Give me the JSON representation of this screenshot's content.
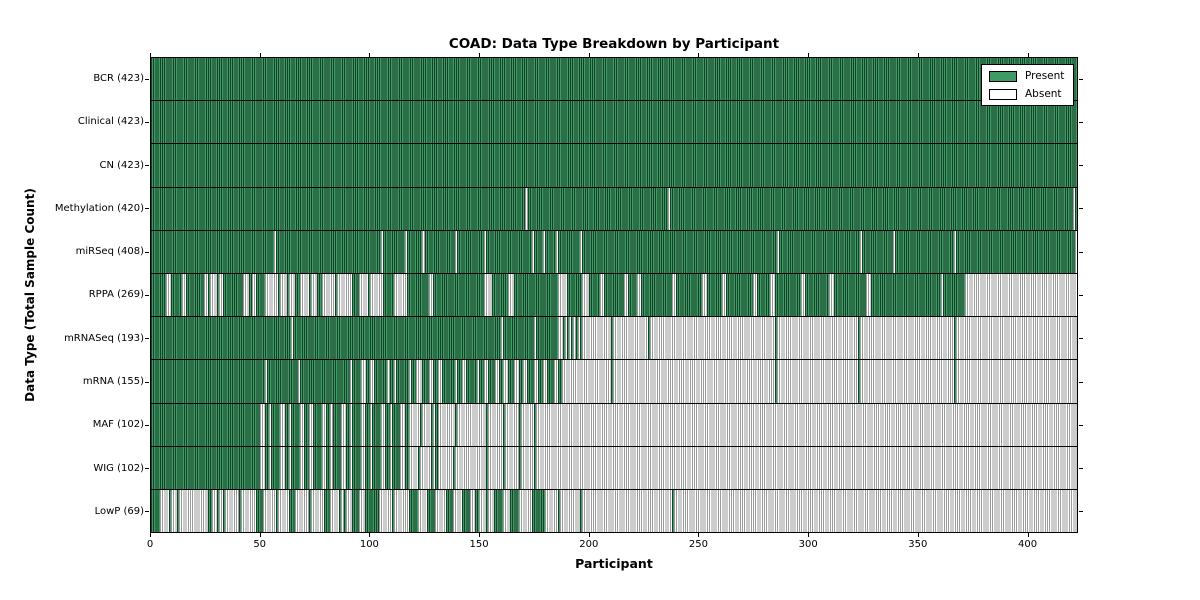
{
  "chart_data": {
    "type": "heatmap",
    "title": "COAD: Data Type Breakdown by Participant",
    "xlabel": "Participant",
    "ylabel": "Data Type (Total Sample Count)",
    "total_participants": 423,
    "x_ticks": [
      0,
      50,
      100,
      150,
      200,
      250,
      300,
      350,
      400
    ],
    "legend_present": "Present",
    "legend_absent": "Absent",
    "colors": {
      "present": "#3f9b64",
      "present_edge": "#17402a",
      "absent": "#ffffff",
      "absent_edge": "#9a9a9a"
    },
    "legend_position": "upper right",
    "rows": [
      {
        "label": "BCR (423)",
        "name": "BCR",
        "count": 423,
        "present_ranges": [
          [
            0,
            423
          ]
        ]
      },
      {
        "label": "Clinical (423)",
        "name": "Clinical",
        "count": 423,
        "present_ranges": [
          [
            0,
            423
          ]
        ]
      },
      {
        "label": "CN (423)",
        "name": "CN",
        "count": 423,
        "present_ranges": [
          [
            0,
            423
          ]
        ]
      },
      {
        "label": "Methylation (420)",
        "name": "Methylation",
        "count": 420,
        "present_ranges": [
          [
            0,
            171
          ],
          [
            172,
            236
          ],
          [
            237,
            421
          ],
          [
            422,
            423
          ]
        ]
      },
      {
        "label": "miRSeq (408)",
        "name": "miRSeq",
        "count": 408,
        "present_ranges": [
          [
            0,
            56
          ],
          [
            57,
            105
          ],
          [
            106,
            116
          ],
          [
            117,
            124
          ],
          [
            125,
            139
          ],
          [
            140,
            152
          ],
          [
            153,
            174
          ],
          [
            175,
            179
          ],
          [
            180,
            185
          ],
          [
            186,
            196
          ],
          [
            197,
            286
          ],
          [
            287,
            324
          ],
          [
            325,
            339
          ],
          [
            340,
            367
          ],
          [
            368,
            422
          ]
        ]
      },
      {
        "label": "RPPA (269)",
        "name": "RPPA",
        "count": 269,
        "present_ranges": [
          [
            0,
            7
          ],
          [
            9,
            14
          ],
          [
            16,
            24
          ],
          [
            26,
            27
          ],
          [
            30,
            31
          ],
          [
            33,
            42
          ],
          [
            45,
            46
          ],
          [
            48,
            52
          ],
          [
            58,
            59
          ],
          [
            62,
            63
          ],
          [
            66,
            68
          ],
          [
            72,
            73
          ],
          [
            76,
            78
          ],
          [
            84,
            85
          ],
          [
            92,
            95
          ],
          [
            99,
            100
          ],
          [
            106,
            111
          ],
          [
            117,
            127
          ],
          [
            129,
            152
          ],
          [
            156,
            163
          ],
          [
            166,
            186
          ],
          [
            190,
            197
          ],
          [
            200,
            205
          ],
          [
            207,
            216
          ],
          [
            218,
            222
          ],
          [
            224,
            238
          ],
          [
            240,
            252
          ],
          [
            254,
            261
          ],
          [
            263,
            275
          ],
          [
            277,
            283
          ],
          [
            285,
            297
          ],
          [
            299,
            310
          ],
          [
            312,
            327
          ],
          [
            329,
            361
          ],
          [
            362,
            372
          ]
        ]
      },
      {
        "label": "mRNASeq (193)",
        "name": "mRNASeq",
        "count": 193,
        "present_ranges": [
          [
            0,
            64
          ],
          [
            65,
            160
          ],
          [
            161,
            175
          ],
          [
            176,
            186
          ],
          [
            188,
            189
          ],
          [
            190,
            191
          ],
          [
            192,
            193
          ],
          [
            194,
            195
          ],
          [
            196,
            197
          ],
          [
            210,
            211
          ],
          [
            227,
            228
          ],
          [
            285,
            286
          ],
          [
            323,
            324
          ],
          [
            367,
            368
          ]
        ]
      },
      {
        "label": "mRNA (155)",
        "name": "mRNA",
        "count": 155,
        "present_ranges": [
          [
            0,
            52
          ],
          [
            53,
            67
          ],
          [
            68,
            91
          ],
          [
            92,
            96
          ],
          [
            98,
            100
          ],
          [
            102,
            108
          ],
          [
            109,
            111
          ],
          [
            112,
            118
          ],
          [
            119,
            121
          ],
          [
            124,
            127
          ],
          [
            129,
            131
          ],
          [
            133,
            139
          ],
          [
            140,
            142
          ],
          [
            144,
            149
          ],
          [
            150,
            152
          ],
          [
            154,
            157
          ],
          [
            159,
            161
          ],
          [
            163,
            166
          ],
          [
            168,
            170
          ],
          [
            172,
            175
          ],
          [
            177,
            179
          ],
          [
            181,
            184
          ],
          [
            186,
            188
          ],
          [
            210,
            211
          ],
          [
            285,
            286
          ],
          [
            323,
            324
          ],
          [
            367,
            368
          ]
        ]
      },
      {
        "label": "MAF (102)",
        "name": "MAF",
        "count": 102,
        "present_ranges": [
          [
            0,
            50
          ],
          [
            52,
            54
          ],
          [
            55,
            59
          ],
          [
            61,
            63
          ],
          [
            64,
            68
          ],
          [
            70,
            72
          ],
          [
            74,
            78
          ],
          [
            80,
            82
          ],
          [
            83,
            87
          ],
          [
            89,
            91
          ],
          [
            92,
            96
          ],
          [
            98,
            100
          ],
          [
            101,
            105
          ],
          [
            107,
            109
          ],
          [
            110,
            114
          ],
          [
            116,
            118
          ],
          [
            123,
            124
          ],
          [
            128,
            129
          ],
          [
            130,
            131
          ],
          [
            139,
            140
          ],
          [
            153,
            154
          ],
          [
            161,
            162
          ],
          [
            168,
            169
          ],
          [
            175,
            176
          ]
        ]
      },
      {
        "label": "WIG (102)",
        "name": "WIG",
        "count": 102,
        "present_ranges": [
          [
            0,
            50
          ],
          [
            52,
            54
          ],
          [
            55,
            59
          ],
          [
            61,
            63
          ],
          [
            64,
            68
          ],
          [
            70,
            72
          ],
          [
            74,
            78
          ],
          [
            80,
            82
          ],
          [
            83,
            87
          ],
          [
            89,
            91
          ],
          [
            92,
            96
          ],
          [
            98,
            100
          ],
          [
            101,
            105
          ],
          [
            107,
            109
          ],
          [
            110,
            114
          ],
          [
            116,
            118
          ],
          [
            122,
            123
          ],
          [
            128,
            129
          ],
          [
            130,
            131
          ],
          [
            138,
            139
          ],
          [
            153,
            154
          ],
          [
            161,
            162
          ],
          [
            168,
            169
          ],
          [
            175,
            176
          ]
        ]
      },
      {
        "label": "LowP (69)",
        "name": "LowP",
        "count": 69,
        "present_ranges": [
          [
            0,
            4
          ],
          [
            8,
            9
          ],
          [
            12,
            13
          ],
          [
            26,
            28
          ],
          [
            30,
            31
          ],
          [
            33,
            34
          ],
          [
            40,
            41
          ],
          [
            48,
            51
          ],
          [
            57,
            58
          ],
          [
            63,
            66
          ],
          [
            72,
            73
          ],
          [
            79,
            82
          ],
          [
            86,
            87
          ],
          [
            88,
            89
          ],
          [
            92,
            95
          ],
          [
            98,
            104
          ],
          [
            110,
            111
          ],
          [
            118,
            122
          ],
          [
            126,
            130
          ],
          [
            135,
            138
          ],
          [
            142,
            146
          ],
          [
            148,
            150
          ],
          [
            153,
            154
          ],
          [
            157,
            161
          ],
          [
            164,
            168
          ],
          [
            174,
            180
          ],
          [
            186,
            187
          ],
          [
            196,
            197
          ],
          [
            238,
            239
          ]
        ]
      }
    ]
  }
}
